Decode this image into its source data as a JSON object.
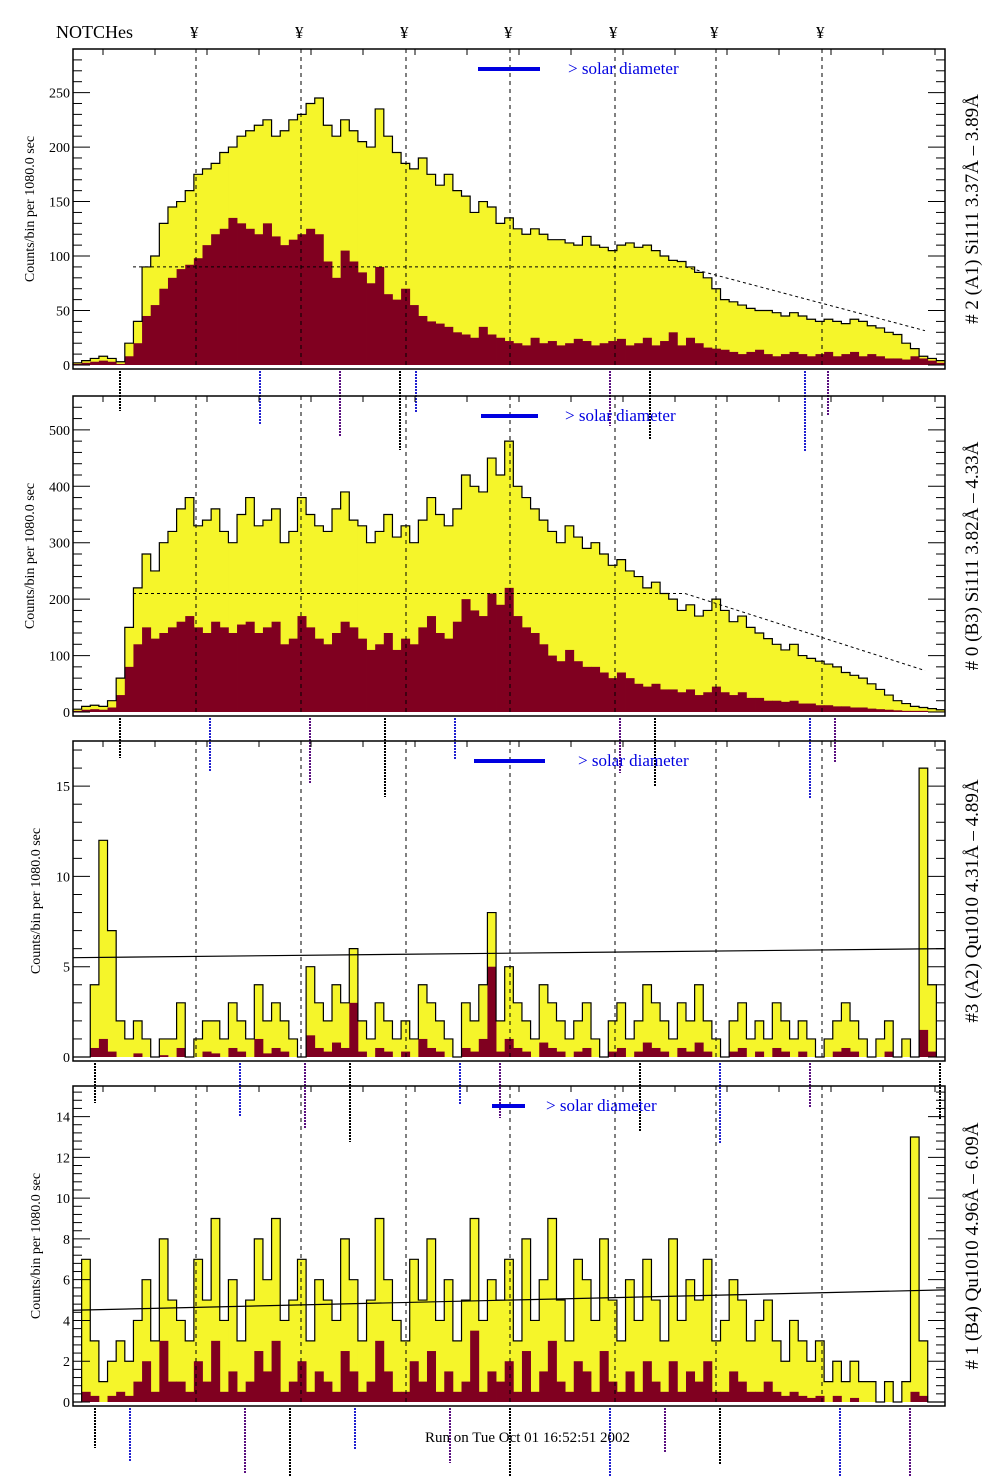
{
  "header": {
    "notches_label": "NOTCHes",
    "notch_marker": "¥",
    "notch_count": 7
  },
  "footer": {
    "run_text": "Run on Tue Oct 01 16:52:51 2002"
  },
  "colors": {
    "total_fill": "#f5f52a",
    "component_fill": "#800020",
    "outline": "#000000",
    "solar_marker": "#0000e0",
    "line_labels_blue": "#2020d0",
    "line_labels_purple": "#5a1080"
  },
  "chart_data": [
    {
      "type": "bar",
      "panel_label": "# 2 (A1) Si111  3.37Å – 3.89Å",
      "ylabel": "Counts/bin per   1080.0 sec",
      "legend_text": "> solar diameter",
      "legend_placement": "top-center",
      "ylim": [
        0,
        290
      ],
      "yticks": [
        0,
        50,
        100,
        150,
        200,
        250
      ],
      "reference_level": 90,
      "reference_style": "dashed",
      "total_profile": [
        2,
        4,
        6,
        8,
        6,
        3,
        20,
        40,
        90,
        100,
        130,
        145,
        150,
        160,
        175,
        180,
        185,
        195,
        200,
        210,
        215,
        220,
        225,
        210,
        215,
        225,
        230,
        240,
        245,
        220,
        210,
        225,
        215,
        205,
        200,
        235,
        210,
        195,
        185,
        180,
        190,
        175,
        165,
        175,
        160,
        155,
        140,
        150,
        145,
        130,
        135,
        125,
        120,
        125,
        120,
        115,
        115,
        112,
        110,
        118,
        110,
        108,
        105,
        110,
        112,
        108,
        110,
        105,
        100,
        96,
        95,
        90,
        85,
        80,
        70,
        60,
        58,
        55,
        52,
        50,
        50,
        48,
        45,
        48,
        45,
        42,
        40,
        42,
        40,
        38,
        42,
        40,
        36,
        34,
        30,
        28,
        20,
        15,
        8,
        6,
        4
      ],
      "component_profile": [
        1,
        2,
        3,
        4,
        3,
        1,
        8,
        20,
        45,
        55,
        70,
        80,
        88,
        92,
        98,
        110,
        120,
        125,
        135,
        130,
        125,
        120,
        130,
        118,
        110,
        115,
        120,
        125,
        120,
        95,
        80,
        105,
        95,
        85,
        75,
        90,
        65,
        60,
        70,
        55,
        45,
        40,
        38,
        35,
        30,
        28,
        25,
        35,
        28,
        25,
        22,
        20,
        18,
        25,
        20,
        22,
        18,
        20,
        24,
        22,
        18,
        20,
        22,
        24,
        18,
        20,
        25,
        18,
        22,
        30,
        18,
        25,
        20,
        16,
        15,
        14,
        12,
        10,
        12,
        14,
        10,
        8,
        10,
        12,
        10,
        8,
        10,
        12,
        8,
        10,
        12,
        8,
        10,
        8,
        6,
        6,
        5,
        8,
        6,
        4,
        2
      ]
    },
    {
      "type": "bar",
      "panel_label": "# 0 (B3) Si111  3.82Å – 4.33Å",
      "ylabel": "Counts/bin per   1080.0 sec",
      "legend_text": "> solar diameter",
      "legend_placement": "top-center",
      "ylim": [
        0,
        560
      ],
      "yticks": [
        0,
        100,
        200,
        300,
        400,
        500
      ],
      "reference_level": 210,
      "reference_style": "dashed",
      "total_profile": [
        5,
        10,
        12,
        10,
        20,
        60,
        150,
        220,
        280,
        250,
        300,
        320,
        360,
        380,
        330,
        340,
        360,
        320,
        300,
        350,
        380,
        330,
        340,
        360,
        300,
        320,
        380,
        350,
        330,
        320,
        360,
        390,
        340,
        330,
        300,
        320,
        350,
        310,
        330,
        300,
        340,
        380,
        350,
        330,
        360,
        420,
        400,
        390,
        450,
        420,
        480,
        400,
        380,
        360,
        340,
        320,
        300,
        330,
        310,
        290,
        300,
        280,
        260,
        270,
        250,
        240,
        220,
        230,
        210,
        200,
        180,
        190,
        170,
        180,
        200,
        180,
        160,
        170,
        150,
        140,
        130,
        120,
        110,
        120,
        100,
        95,
        90,
        85,
        80,
        70,
        65,
        60,
        50,
        40,
        30,
        20,
        15,
        10,
        8,
        6,
        4
      ],
      "component_profile": [
        2,
        4,
        5,
        4,
        8,
        30,
        80,
        120,
        150,
        130,
        140,
        150,
        160,
        170,
        150,
        140,
        160,
        150,
        140,
        155,
        160,
        140,
        150,
        160,
        120,
        130,
        170,
        150,
        130,
        120,
        140,
        160,
        150,
        130,
        110,
        120,
        140,
        110,
        130,
        120,
        150,
        170,
        140,
        130,
        160,
        200,
        180,
        170,
        210,
        190,
        220,
        170,
        150,
        140,
        120,
        100,
        90,
        110,
        90,
        80,
        80,
        70,
        60,
        70,
        60,
        50,
        45,
        50,
        40,
        40,
        35,
        40,
        30,
        35,
        45,
        35,
        30,
        35,
        25,
        25,
        20,
        20,
        18,
        20,
        15,
        15,
        12,
        12,
        10,
        10,
        8,
        8,
        6,
        5,
        4,
        3,
        2,
        2,
        2,
        1,
        1
      ]
    },
    {
      "type": "bar",
      "panel_label": "#3 (A2) Qu1010  4.31Å – 4.89Å",
      "ylabel": "Counts/bin per   1080.0 sec",
      "legend_text": "> solar diameter",
      "legend_placement": "top-center",
      "ylim": [
        0,
        17.5
      ],
      "yticks": [
        0,
        5,
        10,
        15
      ],
      "reference_level": [
        5.5,
        6.0
      ],
      "reference_style": "solid",
      "total_profile": [
        0,
        0,
        4,
        12,
        7,
        2,
        1,
        2,
        1,
        0,
        1,
        1,
        3,
        0,
        1,
        2,
        2,
        1,
        3,
        2,
        1,
        4,
        2,
        3,
        2,
        1,
        0,
        5,
        3,
        2,
        4,
        3,
        6,
        2,
        1,
        3,
        2,
        1,
        2,
        1,
        4,
        3,
        2,
        1,
        0,
        3,
        2,
        4,
        8,
        2,
        5,
        3,
        2,
        1,
        4,
        3,
        2,
        1,
        2,
        3,
        1,
        0,
        2,
        3,
        1,
        2,
        4,
        3,
        2,
        1,
        3,
        2,
        4,
        2,
        1,
        0,
        2,
        3,
        1,
        2,
        1,
        3,
        2,
        1,
        2,
        1,
        0,
        1,
        2,
        3,
        2,
        1,
        0,
        1,
        2,
        0,
        1,
        0,
        16,
        4,
        0
      ],
      "component_profile": [
        0,
        0,
        0.5,
        1,
        0.3,
        0,
        0,
        0.2,
        0,
        0,
        0.1,
        0,
        0.5,
        0,
        0,
        0.3,
        0.2,
        0,
        0.5,
        0.3,
        0,
        1,
        0.2,
        0.5,
        0.3,
        0,
        0,
        1.2,
        0.5,
        0.3,
        0.8,
        0.5,
        3,
        0.3,
        0,
        0.5,
        0.3,
        0,
        0.3,
        0,
        1,
        0.5,
        0.3,
        0,
        0,
        0.5,
        0.3,
        1,
        5,
        0.3,
        1,
        0.5,
        0.3,
        0,
        0.8,
        0.5,
        0.3,
        0,
        0.3,
        0.5,
        0,
        0,
        0.3,
        0.5,
        0,
        0.3,
        0.8,
        0.5,
        0.3,
        0,
        0.5,
        0.3,
        0.8,
        0.3,
        0,
        0,
        0.3,
        0.5,
        0,
        0.3,
        0,
        0.5,
        0.3,
        0,
        0.3,
        0,
        0,
        0,
        0.3,
        0.5,
        0.3,
        0,
        0,
        0,
        0.3,
        0,
        0,
        0,
        1.5,
        0.3,
        0
      ]
    },
    {
      "type": "bar",
      "panel_label": "# 1 (B4) Qu1010 4.96Å – 6.09Å",
      "ylabel": "Counts/bin per   1080.0 sec",
      "legend_text": "> solar diameter",
      "legend_placement": "top-center",
      "ylim": [
        0,
        15.5
      ],
      "yticks": [
        0,
        2,
        4,
        6,
        8,
        10,
        12,
        14
      ],
      "reference_level": [
        4.5,
        5.5
      ],
      "reference_style": "solid",
      "total_profile": [
        0,
        7,
        3,
        1,
        2,
        3,
        2,
        4,
        6,
        3,
        8,
        5,
        4,
        3,
        7,
        5,
        9,
        4,
        6,
        3,
        5,
        8,
        6,
        9,
        4,
        5,
        7,
        3,
        6,
        5,
        4,
        8,
        6,
        3,
        5,
        9,
        6,
        4,
        3,
        7,
        5,
        8,
        4,
        6,
        3,
        5,
        9,
        4,
        6,
        5,
        7,
        3,
        8,
        4,
        6,
        9,
        5,
        3,
        7,
        6,
        4,
        8,
        5,
        3,
        6,
        4,
        7,
        5,
        3,
        8,
        4,
        6,
        5,
        7,
        3,
        4,
        6,
        5,
        3,
        4,
        5,
        3,
        2,
        4,
        3,
        2,
        3,
        1,
        2,
        1,
        2,
        1,
        1,
        0,
        1,
        0,
        1,
        13,
        3,
        0,
        0
      ],
      "component_profile": [
        0,
        0.5,
        0.3,
        0,
        0.3,
        0.5,
        0.3,
        1,
        2,
        0.5,
        3,
        1,
        1,
        0.5,
        2,
        1,
        3,
        0.5,
        1.5,
        0.5,
        1,
        2.5,
        1.5,
        3,
        0.5,
        1,
        2,
        0.5,
        1.5,
        1,
        0.5,
        2.5,
        1.5,
        0.5,
        1,
        3,
        1.5,
        0.5,
        0.5,
        2,
        1,
        2.5,
        0.5,
        1.5,
        0.5,
        1,
        3.5,
        0.5,
        1.5,
        1,
        2,
        0.5,
        2.5,
        0.5,
        1.5,
        3,
        1,
        0.5,
        2,
        1.5,
        0.5,
        2.5,
        1,
        0.5,
        1.5,
        0.5,
        2,
        1,
        0.5,
        2,
        0.5,
        1.5,
        1,
        2,
        0.5,
        0.5,
        1.5,
        1,
        0.5,
        0.5,
        1,
        0.5,
        0.3,
        0.5,
        0.3,
        0.2,
        0.3,
        0,
        0.3,
        0,
        0.2,
        0,
        0,
        0,
        0,
        0,
        0,
        0.5,
        0.3,
        0,
        0
      ]
    }
  ]
}
